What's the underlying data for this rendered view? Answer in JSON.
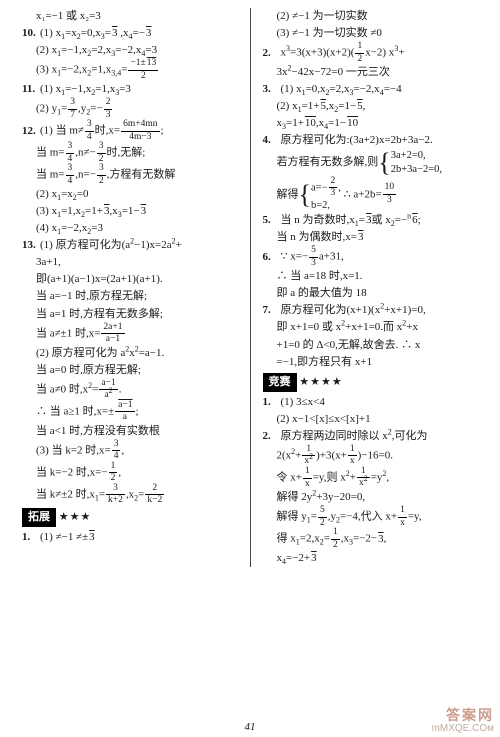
{
  "page_number": "41",
  "watermark": {
    "line1": "答案网",
    "line2": "mMXQE.COм"
  },
  "left": [
    {
      "cls": "line indent1",
      "t": "x₁=−1 或 x₂=3"
    },
    {
      "cls": "line",
      "html": "<span class='num'>10.</span>(1) x<sub>1</sub>=x<sub>2</sub>=0,x<sub>3</sub>=<span class='sqrt'>3</span> ,x<sub>4</sub>=−<span class='sqrt'>3</span>"
    },
    {
      "cls": "line indent1",
      "html": "(2) x<sub>1</sub>=−1,x<sub>2</sub>=2,x<sub>3</sub>=−2,x<sub>4</sub>=3"
    },
    {
      "cls": "line indent1",
      "html": "(3) x<sub>1</sub>=−2,x<sub>2</sub>=1,x<sub>3,4</sub>=<span class='frac'><span class='n'>−1±<span class=\"sqrt\">13</span></span><span class='d'>2</span></span>"
    },
    {
      "cls": "line",
      "html": "<span class='num'>11.</span>(1) x<sub>1</sub>=−1,x<sub>2</sub>=1,x<sub>3</sub>=3"
    },
    {
      "cls": "line indent1",
      "html": "(2) y<sub>1</sub>=<span class='frac'><span class='n'>3</span><span class='d'>7</span></span>,y<sub>2</sub>=−<span class='frac'><span class='n'>2</span><span class='d'>3</span></span>"
    },
    {
      "cls": "line",
      "html": "<span class='num'>12.</span>(1) 当 m≠<span class='frac'><span class='n'>3</span><span class='d'>4</span></span>时,x=<span class='frac'><span class='n'>6m+4mn</span><span class='d'>4m−3</span></span>;"
    },
    {
      "cls": "line indent1",
      "html": "当 m=<span class='frac'><span class='n'>3</span><span class='d'>4</span></span>,n≠−<span class='frac'><span class='n'>3</span><span class='d'>2</span></span>时,无解;"
    },
    {
      "cls": "line indent1",
      "html": "当 m=<span class='frac'><span class='n'>3</span><span class='d'>4</span></span>,n=−<span class='frac'><span class='n'>3</span><span class='d'>2</span></span>,方程有无数解"
    },
    {
      "cls": "line indent1",
      "html": "(2) x<sub>1</sub>=x<sub>2</sub>=0"
    },
    {
      "cls": "line indent1",
      "html": "(3) x<sub>1</sub>=1,x<sub>2</sub>=1+<span class='sqrt'>3</span>,x<sub>3</sub>=1−<span class='sqrt'>3</span>"
    },
    {
      "cls": "line indent1",
      "html": "(4) x<sub>1</sub>=−2,x<sub>2</sub>=3"
    },
    {
      "cls": "line",
      "html": "<span class='num'>13.</span>(1) 原方程可化为(a<sup>2</sup>−1)x=2a<sup>2</sup>+"
    },
    {
      "cls": "line indent1",
      "t": "3a+1,"
    },
    {
      "cls": "line indent1",
      "t": "即(a+1)(a−1)x=(2a+1)(a+1)."
    },
    {
      "cls": "line indent1",
      "t": "当 a=−1 时,原方程无解;"
    },
    {
      "cls": "line indent1",
      "t": "当 a=1 时,方程有无数多解;"
    },
    {
      "cls": "line indent1",
      "html": "当 a≠±1 时,x=<span class='frac'><span class='n'>2a+1</span><span class='d'>a−1</span></span>"
    },
    {
      "cls": "line indent1",
      "html": "(2) 原方程可化为 a<sup>2</sup>x<sup>2</sup>=a−1."
    },
    {
      "cls": "line indent1",
      "t": "当 a=0 时,原方程无解;"
    },
    {
      "cls": "line indent1",
      "html": "当 a≠0 时,x<sup>2</sup>=<span class='frac'><span class='n'>a−1</span><span class='d'>a<sup>2</sup></span></span>."
    },
    {
      "cls": "line indent1",
      "html": "∴ 当 a≥1 时,x=±<span class='frac'><span class='n'><span class=\"sqrt\">a−1</span></span><span class='d'>a</span></span>;"
    },
    {
      "cls": "line indent1",
      "t": "当 a<1 时,方程没有实数根"
    },
    {
      "cls": "line indent1",
      "html": "(3) 当 k=2 时,x=<span class='frac'><span class='n'>3</span><span class='d'>4</span></span>,"
    },
    {
      "cls": "line indent1",
      "html": "当 k=−2 时,x=−<span class='frac'><span class='n'>1</span><span class='d'>2</span></span>,"
    },
    {
      "cls": "line indent1",
      "html": "当 k≠±2 时,x<sub>1</sub>=<span class='frac'><span class='n'>3</span><span class='d'>k+2</span></span>,x<sub>2</sub>=<span class='frac'><span class='n'>2</span><span class='d'>k−2</span></span>"
    },
    {
      "cls": "line",
      "html": "<span class='section'>拓展</span> <span class='stars'>★★★</span>"
    },
    {
      "cls": "line",
      "html": "<span class='num'>1.</span>(1) ≠−1 ≠±<span class='sqrt'>3</span>"
    }
  ],
  "right": [
    {
      "cls": "line indent1",
      "t": "(2) ≠−1 为一切实数"
    },
    {
      "cls": "line indent1",
      "t": "(3) ≠−1 为一切实数 ≠0"
    },
    {
      "cls": "line",
      "html": "<span class='num'>2.</span>x<sup>3</sup>=3(x+3)(x+2)(<span class='frac'><span class='n'>1</span><span class='d'>2</span></span>x−2) x<sup>3</sup>+"
    },
    {
      "cls": "line indent1",
      "html": "3x<sup>2</sup>−42x−72=0 一元三次"
    },
    {
      "cls": "line",
      "html": "<span class='num'>3.</span>(1) x<sub>1</sub>=0,x<sub>2</sub>=2,x<sub>3</sub>=−2,x<sub>4</sub>=−4"
    },
    {
      "cls": "line indent1",
      "html": "(2) x<sub>1</sub>=1+<span class='sqrt'>5</span>,x<sub>2</sub>=1−<span class='sqrt'>5</span>,"
    },
    {
      "cls": "line indent1",
      "html": "x<sub>3</sub>=1+<span class='sqrt'>10</span>,x<sub>4</sub>=1−<span class='sqrt'>10</span>"
    },
    {
      "cls": "line",
      "html": "<span class='num'>4.</span>原方程可化为:(3a+2)x=2b+3a−2."
    },
    {
      "cls": "line indent1",
      "html": "若方程有无数多解,则<span class='brace'>{</span><span class='brace-content'>3a+2=0,<br>2b+3a−2=0,</span>"
    },
    {
      "cls": "line indent1",
      "html": "解得<span class='brace'>{</span><span class='brace-content'>a=−<span class='frac'><span class=\"n\">2</span><span class=\"d\">3</span></span>,<br>b=2,</span> ∴ a+2b=<span class='frac'><span class='n'>10</span><span class='d'>3</span></span>"
    },
    {
      "cls": "line",
      "html": "<span class='num'>5.</span>当 n 为奇数时,x<sub>1</sub>=<span class='sqrt'>3</span>或 x<sub>2</sub>=−<sup>n</sup><span class='sqrt'>6</span>;"
    },
    {
      "cls": "line indent1",
      "html": "当 n 为偶数时,x=<span class='sqrt'>3</span>"
    },
    {
      "cls": "line",
      "html": "<span class='num'>6.</span>∵ x=−<span class='frac'><span class='n'>5</span><span class='d'>3</span></span>a+31,"
    },
    {
      "cls": "line indent1",
      "t": "∴ 当 a=18 时,x=1."
    },
    {
      "cls": "line indent1",
      "t": "即 a 的最大值为 18"
    },
    {
      "cls": "line",
      "html": "<span class='num'>7.</span>原方程可化为(x+1)(x<sup>2</sup>+x+1)=0,"
    },
    {
      "cls": "line indent1",
      "html": "即 x+1=0 或 x<sup>2</sup>+x+1=0.而 x<sup>2</sup>+x"
    },
    {
      "cls": "line indent1",
      "t": "+1=0 的 Δ<0,无解,故舍去. ∴ x"
    },
    {
      "cls": "line indent1",
      "t": "=−1,即方程只有 x+1"
    },
    {
      "cls": "line",
      "html": "<span class='section'>竞赛</span> <span class='stars'>★★★★</span>"
    },
    {
      "cls": "line",
      "html": "<span class='num'>1.</span>(1) 3≤x<4"
    },
    {
      "cls": "line indent1",
      "t": "(2) x−1<[x]≤x<[x]+1"
    },
    {
      "cls": "line",
      "html": "<span class='num'>2.</span>原方程两边同时除以 x<sup>2</sup>,可化为"
    },
    {
      "cls": "line indent1",
      "html": "2(x<sup>2</sup>+<span class='frac'><span class='n'>1</span><span class='d'>x<sup>2</sup></span></span>)+3(x+<span class='frac'><span class='n'>1</span><span class='d'>x</span></span>)−16=0."
    },
    {
      "cls": "line indent1",
      "html": "令 x+<span class='frac'><span class='n'>1</span><span class='d'>x</span></span>=y,则 x<sup>2</sup>+<span class='frac'><span class='n'>1</span><span class='d'>x<sup>2</sup></span></span>=y<sup>2</sup>,"
    },
    {
      "cls": "line indent1",
      "html": "解得 2y<sup>2</sup>+3y−20=0,"
    },
    {
      "cls": "line indent1",
      "html": "解得 y<sub>1</sub>=<span class='frac'><span class='n'>5</span><span class='d'>2</span></span>,y<sub>2</sub>=−4,代入 x+<span class='frac'><span class='n'>1</span><span class='d'>x</span></span>=y,"
    },
    {
      "cls": "line indent1",
      "html": "得 x<sub>1</sub>=2,x<sub>2</sub>=<span class='frac'><span class='n'>1</span><span class='d'>2</span></span>,x<sub>3</sub>=−2−<span class='sqrt'>3</span>,"
    },
    {
      "cls": "line indent1",
      "html": "x<sub>4</sub>=−2+<span class='sqrt'>3</span>"
    }
  ]
}
